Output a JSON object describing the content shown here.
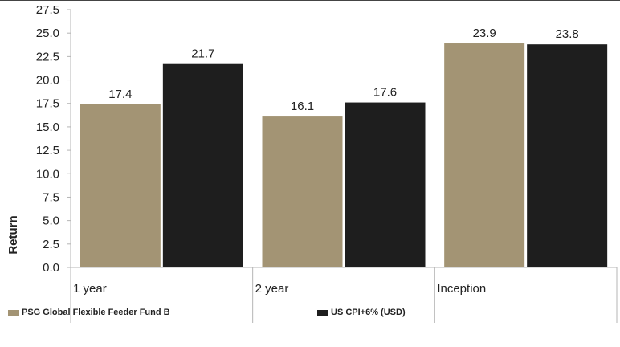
{
  "chart_data": {
    "type": "bar",
    "categories": [
      "1 year",
      "2 year",
      "Inception"
    ],
    "series": [
      {
        "name": "PSG Global Flexible Feeder Fund B",
        "values": [
          17.4,
          16.1,
          23.9
        ],
        "color": "#a39474"
      },
      {
        "name": "US CPI+6% (USD)",
        "values": [
          21.7,
          17.6,
          23.8
        ],
        "color": "#1e1e1e"
      }
    ],
    "title": "",
    "xlabel": "",
    "ylabel": "Return",
    "ylim": [
      0,
      27.5
    ],
    "yticks": [
      "0.0",
      "2.5",
      "5.0",
      "7.5",
      "10.0",
      "12.5",
      "15.0",
      "17.5",
      "20.0",
      "22.5",
      "25.0",
      "27.5"
    ],
    "grid": false,
    "legend_position": "bottom"
  }
}
